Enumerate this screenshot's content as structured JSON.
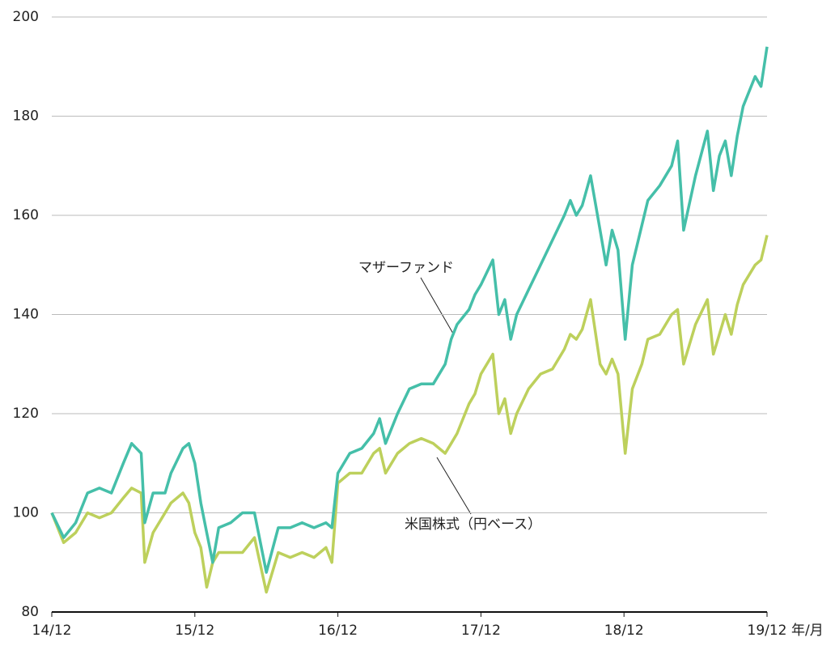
{
  "chart_data": {
    "type": "line",
    "xlabel": "年/月",
    "annotations": [
      "マザーファンド",
      "米国株式（円ベース）"
    ],
    "xlim": [
      0,
      60
    ],
    "xticks": [
      {
        "value": 0,
        "label": "14/12"
      },
      {
        "value": 12,
        "label": "15/12"
      },
      {
        "value": 24,
        "label": "16/12"
      },
      {
        "value": 36,
        "label": "17/12"
      },
      {
        "value": 48,
        "label": "18/12"
      },
      {
        "value": 60,
        "label": "19/12"
      }
    ],
    "ylim": [
      80,
      200
    ],
    "yticks": [
      80,
      100,
      120,
      140,
      160,
      180,
      200
    ],
    "grid": true,
    "x": [
      0,
      1,
      2,
      3,
      4,
      5,
      6,
      6.7,
      7.5,
      7.8,
      8.5,
      9.5,
      10,
      11,
      11.5,
      12,
      12.5,
      13,
      13.5,
      14,
      15,
      16,
      17,
      18,
      19,
      20,
      21,
      22,
      23,
      23.5,
      24,
      25,
      26,
      27,
      27.5,
      28,
      29,
      30,
      31,
      32,
      33,
      33.5,
      34,
      35,
      35.5,
      36,
      37,
      37.5,
      38,
      38.5,
      39,
      40,
      41,
      42,
      43,
      43.5,
      44,
      44.5,
      45.2,
      46,
      46.5,
      47,
      47.5,
      48.1,
      48.7,
      49.5,
      50,
      51,
      52,
      52.5,
      53,
      54,
      55,
      55.5,
      56,
      56.5,
      57,
      57.5,
      58,
      59,
      59.5,
      60
    ],
    "series": [
      {
        "name": "マザーファンド",
        "color": "#45bfa9",
        "values": [
          100,
          95,
          98,
          104,
          105,
          104,
          110,
          114,
          112,
          98,
          104,
          104,
          108,
          113,
          114,
          110,
          102,
          96,
          90,
          97,
          98,
          100,
          100,
          88,
          97,
          97,
          98,
          97,
          98,
          97,
          108,
          112,
          113,
          116,
          119,
          114,
          120,
          125,
          126,
          126,
          130,
          135,
          138,
          141,
          144,
          146,
          151,
          140,
          143,
          135,
          140,
          145,
          150,
          155,
          160,
          163,
          160,
          162,
          168,
          157,
          150,
          157,
          153,
          135,
          150,
          158,
          163,
          166,
          170,
          175,
          157,
          168,
          177,
          165,
          172,
          175,
          168,
          176,
          182,
          188,
          186,
          194
        ]
      },
      {
        "name": "米国株式（円ベース）",
        "color": "#bdd05c",
        "values": [
          100,
          94,
          96,
          100,
          99,
          100,
          103,
          105,
          104,
          90,
          96,
          100,
          102,
          104,
          102,
          96,
          93,
          85,
          90,
          92,
          92,
          92,
          95,
          84,
          92,
          91,
          92,
          91,
          93,
          90,
          106,
          108,
          108,
          112,
          113,
          108,
          112,
          114,
          115,
          114,
          112,
          114,
          116,
          122,
          124,
          128,
          132,
          120,
          123,
          116,
          120,
          125,
          128,
          129,
          133,
          136,
          135,
          137,
          143,
          130,
          128,
          131,
          128,
          112,
          125,
          130,
          135,
          136,
          140,
          141,
          130,
          138,
          143,
          132,
          136,
          140,
          136,
          142,
          146,
          150,
          151,
          156
        ]
      }
    ]
  }
}
